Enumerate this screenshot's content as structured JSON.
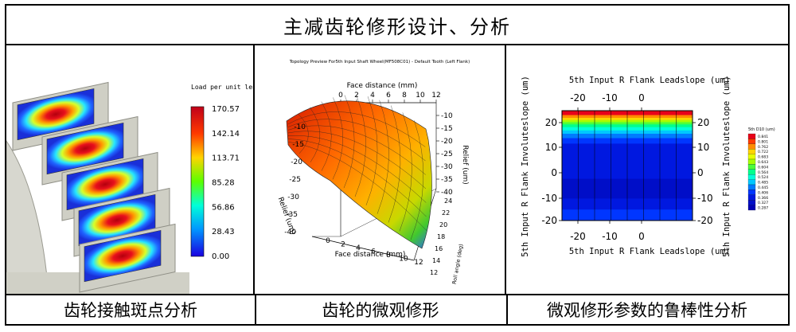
{
  "title": "主减齿轮修形设计、分析",
  "captions": [
    "齿轮接触斑点分析",
    "齿轮的微观修形",
    "微观修形参数的鲁棒性分析"
  ],
  "panel1": {
    "legend_title": "Load per unit len",
    "legend_values": [
      "170.57",
      "142.14",
      "113.71",
      "85.28",
      "56.86",
      "28.43",
      "0.00"
    ]
  },
  "panel2": {
    "plot_title": "Topology Preview For5th Input Shaft Wheel(MF508C01) - Default Tooth (Left Flank)",
    "top_axis_label": "Face distance (mm)",
    "top_ticks": [
      "0",
      "2",
      "4",
      "6",
      "8",
      "10",
      "12"
    ],
    "bottom_axis_label": "Face distance (mm)",
    "bottom_ticks": [
      "0",
      "2",
      "4",
      "6",
      "8",
      "10",
      "12"
    ],
    "left_axis_label": "Relief (um)",
    "left_ticks": [
      "-10",
      "-15",
      "-20",
      "-25",
      "-30",
      "-35",
      "-40"
    ],
    "right_axis_label": "Relief (um)",
    "right_ticks": [
      "-10",
      "-15",
      "-20",
      "-25",
      "-30",
      "-35",
      "-40"
    ],
    "roll_label": "Roll angle (deg)",
    "roll_ticks": [
      "12",
      "14",
      "16",
      "18",
      "20",
      "22",
      "24"
    ]
  },
  "panel3": {
    "top_axis_label": "5th Input R Flank Leadslope (um)",
    "bottom_axis_label": "5th Input R Flank Leadslope (um)",
    "left_axis_label": "5th Input R Flank Involuteslope (um)",
    "right_axis_label": "5th Input R Flank Involuteslope (um)",
    "x_ticks": [
      "-20",
      "-10",
      "0"
    ],
    "y_ticks": [
      "20",
      "10",
      "0",
      "-10",
      "-20"
    ],
    "legend_title": "5th D10 (um)",
    "legend_values": [
      "0.841",
      "0.801",
      "0.762",
      "0.722",
      "0.683",
      "0.643",
      "0.604",
      "0.564",
      "0.524",
      "0.485",
      "0.445",
      "0.406",
      "0.366",
      "0.327",
      "0.287"
    ],
    "colors": [
      "#e8001a",
      "#ff3a00",
      "#ff8c00",
      "#ffd400",
      "#e6ff00",
      "#a6ff00",
      "#4cff3a",
      "#00ff8c",
      "#00ffd9",
      "#00c8ff",
      "#007bff",
      "#0036ff",
      "#0018e0",
      "#000ec8",
      "#0000b4"
    ]
  }
}
